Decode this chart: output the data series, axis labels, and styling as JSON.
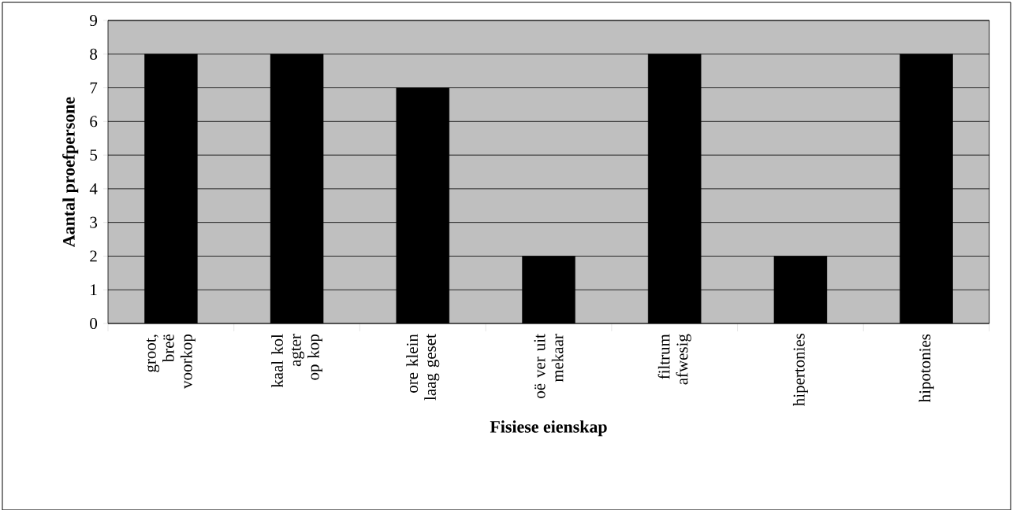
{
  "chart_data": {
    "type": "bar",
    "xlabel": "Fisiese eienskap",
    "ylabel": "Aantal proefpersone",
    "categories": [
      "groot, breë voorkop",
      "kaal kol agter op kop",
      "ore klein laag geset",
      "oë ver uit mekaar",
      "filtrum afwesig",
      "hipertonies",
      "hipotonies"
    ],
    "values": [
      8,
      8,
      7,
      2,
      8,
      2,
      8
    ],
    "color": "#000000",
    "ylim": [
      0,
      9
    ],
    "yticks": [
      0,
      1,
      2,
      3,
      4,
      5,
      6,
      7,
      8,
      9
    ],
    "grid": "y"
  }
}
